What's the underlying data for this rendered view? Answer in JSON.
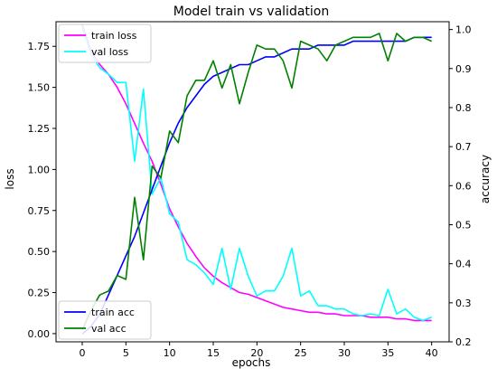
{
  "chart_data": {
    "type": "line",
    "title": "Model train vs validation",
    "xlabel": "epochs",
    "ylabel_left": "loss",
    "ylabel_right": "accuracy",
    "xlim": [
      -3,
      42
    ],
    "ylim_left": [
      -0.05,
      1.9
    ],
    "ylim_right": [
      0.2,
      1.02
    ],
    "x_ticks": [
      0,
      5,
      10,
      15,
      20,
      25,
      30,
      35,
      40
    ],
    "y_left_ticks": [
      "0.00",
      "0.25",
      "0.50",
      "0.75",
      "1.00",
      "1.25",
      "1.50",
      "1.75"
    ],
    "y_right_ticks": [
      "0.2",
      "0.3",
      "0.4",
      "0.5",
      "0.6",
      "0.7",
      "0.8",
      "0.9",
      "1.0"
    ],
    "grid": false,
    "legend_left_position": "upper-left",
    "legend_right_position": "lower-left",
    "x": [
      0,
      1,
      2,
      3,
      4,
      5,
      6,
      7,
      8,
      9,
      10,
      11,
      12,
      13,
      14,
      15,
      16,
      17,
      18,
      19,
      20,
      21,
      22,
      23,
      24,
      25,
      26,
      27,
      28,
      29,
      30,
      31,
      32,
      33,
      34,
      35,
      36,
      37,
      38,
      39,
      40
    ],
    "series": [
      {
        "name": "train loss",
        "axis": "left",
        "color": "#ff00ff",
        "values": [
          1.88,
          1.72,
          1.64,
          1.58,
          1.5,
          1.4,
          1.28,
          1.16,
          1.05,
          0.91,
          0.76,
          0.65,
          0.55,
          0.47,
          0.4,
          0.35,
          0.31,
          0.28,
          0.25,
          0.24,
          0.22,
          0.2,
          0.18,
          0.16,
          0.15,
          0.14,
          0.13,
          0.13,
          0.12,
          0.12,
          0.11,
          0.11,
          0.11,
          0.1,
          0.1,
          0.1,
          0.09,
          0.09,
          0.08,
          0.08,
          0.08
        ]
      },
      {
        "name": "val loss",
        "axis": "left",
        "color": "#00ffff",
        "values": [
          1.86,
          1.7,
          1.62,
          1.58,
          1.53,
          1.53,
          1.05,
          1.49,
          0.85,
          0.95,
          0.73,
          0.68,
          0.45,
          0.42,
          0.37,
          0.3,
          0.52,
          0.27,
          0.52,
          0.35,
          0.23,
          0.26,
          0.26,
          0.35,
          0.52,
          0.23,
          0.26,
          0.17,
          0.17,
          0.15,
          0.15,
          0.12,
          0.11,
          0.12,
          0.11,
          0.27,
          0.12,
          0.15,
          0.1,
          0.08,
          0.1
        ]
      },
      {
        "name": "train acc",
        "axis": "right",
        "color": "#0000ff",
        "values": [
          0.22,
          0.24,
          0.27,
          0.32,
          0.37,
          0.42,
          0.47,
          0.53,
          0.59,
          0.65,
          0.71,
          0.76,
          0.8,
          0.83,
          0.86,
          0.88,
          0.89,
          0.9,
          0.91,
          0.91,
          0.92,
          0.93,
          0.93,
          0.94,
          0.95,
          0.95,
          0.95,
          0.96,
          0.96,
          0.96,
          0.96,
          0.97,
          0.97,
          0.97,
          0.97,
          0.97,
          0.97,
          0.97,
          0.98,
          0.98,
          0.98
        ]
      },
      {
        "name": "val acc",
        "axis": "right",
        "color": "#008000",
        "values": [
          0.23,
          0.28,
          0.32,
          0.33,
          0.37,
          0.36,
          0.57,
          0.41,
          0.65,
          0.62,
          0.74,
          0.71,
          0.83,
          0.87,
          0.87,
          0.92,
          0.85,
          0.91,
          0.81,
          0.89,
          0.96,
          0.95,
          0.95,
          0.92,
          0.85,
          0.97,
          0.96,
          0.95,
          0.92,
          0.96,
          0.97,
          0.98,
          0.98,
          0.98,
          0.99,
          0.92,
          0.99,
          0.97,
          0.98,
          0.98,
          0.97
        ]
      }
    ]
  }
}
